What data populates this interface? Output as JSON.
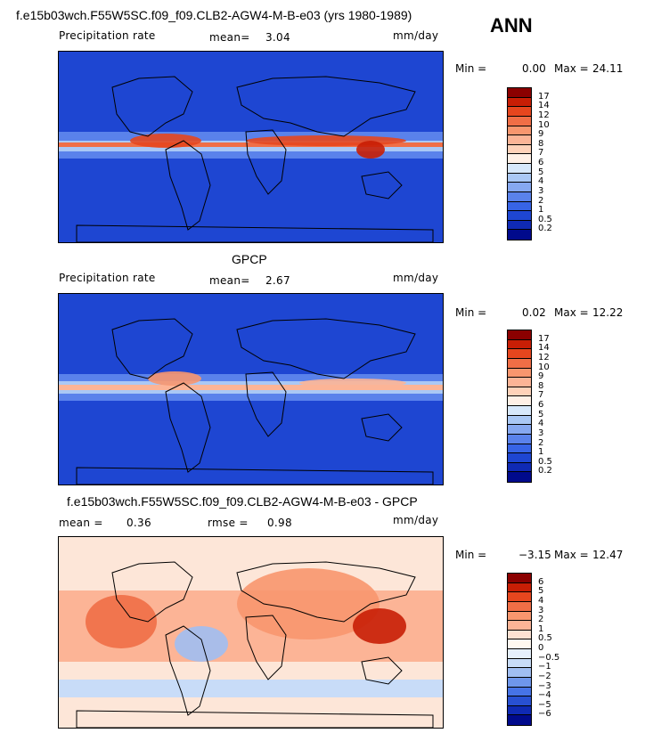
{
  "main_title": "f.e15b03wch.F55W5SC.f09_f09.CLB2-AGW4-M-B-e03 (yrs 1980-1989)",
  "season": "ANN",
  "panels": [
    {
      "subtitle": "",
      "left_label": "Precipitation rate",
      "mid_label": "mean=",
      "mid_value": "3.04",
      "mid2_label": "",
      "mid2_value": "",
      "right_label": "mm/day",
      "min_label": "Min =",
      "min_value": "0.00",
      "max_label": "Max =",
      "max_value": "24.11",
      "levels": [
        "17",
        "14",
        "12",
        "10",
        "9",
        "8",
        "7",
        "6",
        "5",
        "4",
        "3",
        "2",
        "1",
        "0.5",
        "0.2"
      ],
      "colors": [
        "#8b0000",
        "#c81e05",
        "#e6461e",
        "#f06e46",
        "#f8966e",
        "#fcb496",
        "#ffd2b9",
        "#fff0e6",
        "#d7e8fb",
        "#aac8f5",
        "#86a8f0",
        "#5a82eb",
        "#3764e6",
        "#1e46d2",
        "#0f2ab4",
        "#000a8c"
      ]
    },
    {
      "subtitle": "GPCP",
      "left_label": "Precipitation rate",
      "mid_label": "mean=",
      "mid_value": "2.67",
      "mid2_label": "",
      "mid2_value": "",
      "right_label": "mm/day",
      "min_label": "Min =",
      "min_value": "0.02",
      "max_label": "Max =",
      "max_value": "12.22",
      "levels": [
        "17",
        "14",
        "12",
        "10",
        "9",
        "8",
        "7",
        "6",
        "5",
        "4",
        "3",
        "2",
        "1",
        "0.5",
        "0.2"
      ],
      "colors": [
        "#8b0000",
        "#c81e05",
        "#e6461e",
        "#f06e46",
        "#f8966e",
        "#fcb496",
        "#ffd2b9",
        "#fff0e6",
        "#d7e8fb",
        "#aac8f5",
        "#86a8f0",
        "#5a82eb",
        "#3764e6",
        "#1e46d2",
        "#0f2ab4",
        "#000a8c"
      ]
    },
    {
      "subtitle": "f.e15b03wch.F55W5SC.f09_f09.CLB2-AGW4-M-B-e03 - GPCP",
      "left_label": "mean =",
      "mid_label": "",
      "mid_value": "0.36",
      "mid2_label": "rmse =",
      "mid2_value": "0.98",
      "right_label": "mm/day",
      "min_label": "Min =",
      "min_value": "−3.15",
      "max_label": "Max =",
      "max_value": "12.47",
      "levels": [
        "6",
        "5",
        "4",
        "3",
        "2",
        "1",
        "0.5",
        "0",
        "−0.5",
        "−1",
        "−2",
        "−3",
        "−4",
        "−5",
        "−6"
      ],
      "colors": [
        "#8b0000",
        "#c81e05",
        "#e6461e",
        "#f06e46",
        "#f8966e",
        "#fcb496",
        "#fde1d2",
        "#fff8f0",
        "#e6f0fc",
        "#c8dcf8",
        "#a0bef2",
        "#6e96eb",
        "#4673e6",
        "#2850d2",
        "#0f2ab4",
        "#000a8c"
      ]
    }
  ],
  "chart_data": [
    {
      "type": "heatmap",
      "title": "f.e15b03wch.F55W5SC.f09_f09.CLB2-AGW4-M-B-e03 (yrs 1980-1989)",
      "variable": "Precipitation rate",
      "units": "mm/day",
      "season": "ANN",
      "mean": 3.04,
      "min": 0.0,
      "max": 24.11,
      "contour_levels": [
        0.2,
        0.5,
        1,
        2,
        3,
        4,
        5,
        6,
        7,
        8,
        9,
        10,
        12,
        14,
        17
      ]
    },
    {
      "type": "heatmap",
      "title": "GPCP",
      "variable": "Precipitation rate",
      "units": "mm/day",
      "mean": 2.67,
      "min": 0.02,
      "max": 12.22,
      "contour_levels": [
        0.2,
        0.5,
        1,
        2,
        3,
        4,
        5,
        6,
        7,
        8,
        9,
        10,
        12,
        14,
        17
      ]
    },
    {
      "type": "heatmap",
      "title": "f.e15b03wch.F55W5SC.f09_f09.CLB2-AGW4-M-B-e03 - GPCP",
      "units": "mm/day",
      "mean": 0.36,
      "rmse": 0.98,
      "min": -3.15,
      "max": 12.47,
      "contour_levels": [
        -6,
        -5,
        -4,
        -3,
        -2,
        -1,
        -0.5,
        0,
        0.5,
        1,
        2,
        3,
        4,
        5,
        6
      ]
    }
  ]
}
